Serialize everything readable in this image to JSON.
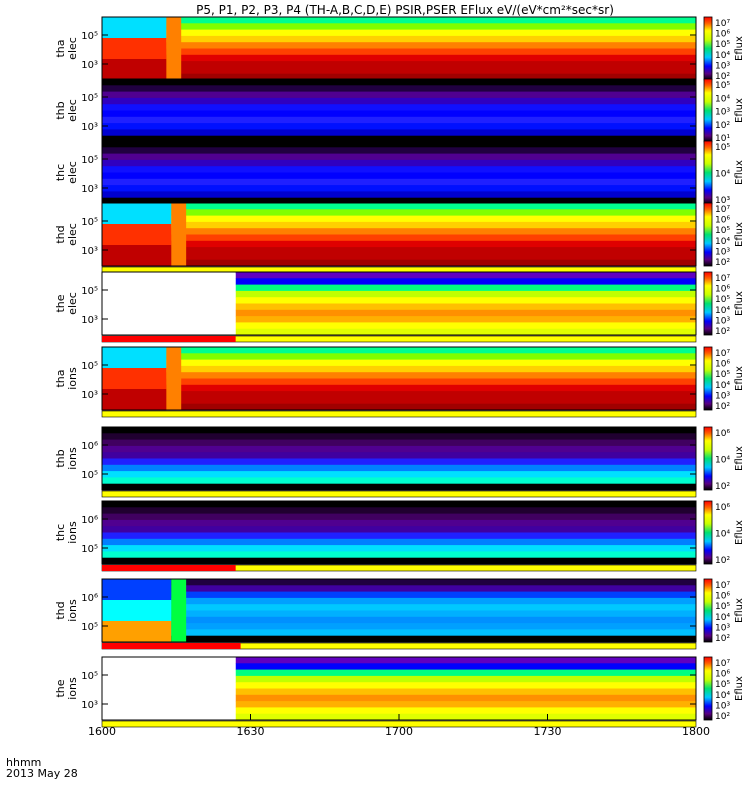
{
  "chart_data": {
    "type": "heatmap",
    "title": "P5, P1, P2, P3, P4 (TH-A,B,C,D,E) PSIR,PSER EFlux eV/(eV*cm²*sec*sr)",
    "x_ticks": [
      "1600",
      "1630",
      "1700",
      "1730",
      "1800"
    ],
    "x_minutes": [
      0,
      30,
      60,
      90,
      120
    ],
    "xlim_minutes": [
      0,
      120
    ],
    "x_corner_label": "hhmm",
    "date_label": "2013 May 28",
    "colorbar_label": "Eflux",
    "panels": [
      {
        "id": "tha-elec",
        "probe": "tha",
        "species": "elec",
        "scale": "hot",
        "gap_end": 0,
        "jump": [
          13,
          16
        ],
        "y_ticks": [
          "10⁵",
          "10³"
        ],
        "cbar": [
          "10⁷",
          "10⁶",
          "10⁵",
          "10⁴",
          "10³",
          "10²"
        ],
        "flag_end": 0
      },
      {
        "id": "thb-elec",
        "probe": "thb",
        "species": "elec",
        "scale": "cold",
        "gap_end": 0,
        "jump": null,
        "y_ticks": [
          "10⁵",
          "10³"
        ],
        "cbar": [
          "10⁵",
          "10⁴",
          "10³",
          "10²",
          "10¹"
        ],
        "flag_end": 0
      },
      {
        "id": "thc-elec",
        "probe": "thc",
        "species": "elec",
        "scale": "cold",
        "gap_end": 0,
        "jump": null,
        "y_ticks": [
          "10⁵",
          "10³"
        ],
        "cbar": [
          "10⁵",
          "10⁴",
          "10³"
        ],
        "flag_end": 0
      },
      {
        "id": "thd-elec",
        "probe": "thd",
        "species": "elec",
        "scale": "hot",
        "gap_end": 0,
        "jump": [
          14,
          17
        ],
        "y_ticks": [
          "10⁵",
          "10³"
        ],
        "cbar": [
          "10⁷",
          "10⁶",
          "10⁵",
          "10⁴",
          "10³",
          "10²"
        ],
        "flag_end": 0
      },
      {
        "id": "the-elec",
        "probe": "the",
        "species": "elec",
        "scale": "warm",
        "gap_end": 27,
        "jump": null,
        "y_ticks": [
          "10⁵",
          "10³"
        ],
        "cbar": [
          "10⁷",
          "10⁶",
          "10⁵",
          "10⁴",
          "10³",
          "10²"
        ],
        "flag_end": 27
      },
      {
        "id": "tha-ions",
        "probe": "tha",
        "species": "ions",
        "scale": "hot",
        "gap_end": 0,
        "jump": [
          13,
          16
        ],
        "y_ticks": [
          "10⁵",
          "10³"
        ],
        "cbar": [
          "10⁷",
          "10⁶",
          "10⁵",
          "10⁴",
          "10³",
          "10²"
        ],
        "flag_end": 0
      },
      {
        "id": "thb-ions",
        "probe": "thb",
        "species": "ions",
        "scale": "coldion",
        "gap_end": 0,
        "jump": null,
        "y_ticks": [
          "10⁶",
          "10⁵"
        ],
        "cbar": [
          "10⁶",
          "10⁴",
          "10²"
        ],
        "flag_end": 0
      },
      {
        "id": "thc-ions",
        "probe": "thc",
        "species": "ions",
        "scale": "coldion",
        "gap_end": 0,
        "jump": null,
        "y_ticks": [
          "10⁶",
          "10⁵"
        ],
        "cbar": [
          "10⁶",
          "10⁴",
          "10²"
        ],
        "flag_end": 27
      },
      {
        "id": "thd-ions",
        "probe": "thd",
        "species": "ions",
        "scale": "midion",
        "gap_end": 0,
        "jump": [
          14,
          17
        ],
        "y_ticks": [
          "10⁶",
          "10⁵"
        ],
        "cbar": [
          "10⁷",
          "10⁶",
          "10⁵",
          "10⁴",
          "10³",
          "10²"
        ],
        "flag_end": 28
      },
      {
        "id": "the-ions",
        "probe": "the",
        "species": "ions",
        "scale": "warm",
        "gap_end": 27,
        "jump": null,
        "y_ticks": [
          "10⁵",
          "10³"
        ],
        "cbar": [
          "10⁷",
          "10⁶",
          "10⁵",
          "10⁴",
          "10³",
          "10²"
        ],
        "flag_end": 0
      }
    ]
  }
}
